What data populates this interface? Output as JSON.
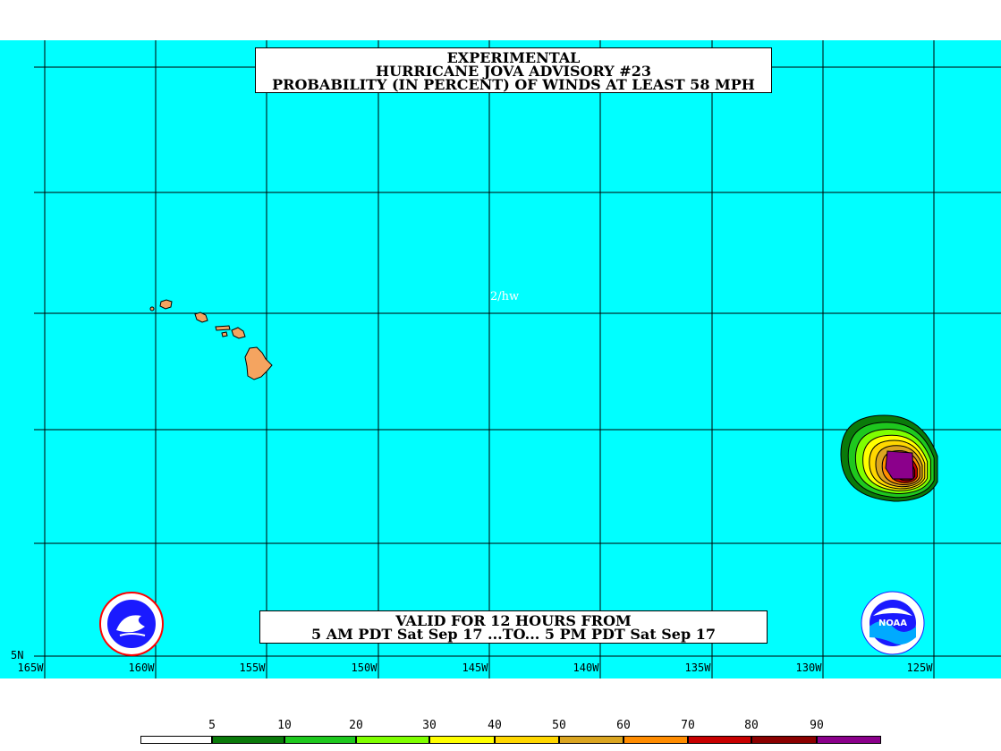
{
  "title": {
    "line1": "EXPERIMENTAL",
    "line2": "HURRICANE JOVA ADVISORY #23",
    "line3": "PROBABILITY (IN PERCENT) OF WINDS AT LEAST 58 MPH"
  },
  "valid": {
    "line1": "VALID FOR 12 HOURS FROM",
    "line2": "5 AM PDT Sat Sep 17 ...TO... 5 PM PDT Sat Sep 17"
  },
  "watermark": "2/hw",
  "map": {
    "background_color": "#00ffff",
    "land_color": "#f4a460",
    "longitude_labels": [
      "165W",
      "160W",
      "155W",
      "150W",
      "145W",
      "140W",
      "135W",
      "130W",
      "125W"
    ],
    "latitude_labels": [
      "5N"
    ]
  },
  "legend": {
    "labels": [
      "5",
      "10",
      "20",
      "30",
      "40",
      "50",
      "60",
      "70",
      "80",
      "90"
    ],
    "colors": [
      "#ffffff",
      "#0a7a0a",
      "#1ec81e",
      "#7fff00",
      "#ffff00",
      "#ffd700",
      "#daa520",
      "#ff8c00",
      "#c80000",
      "#8b0000",
      "#8b008b"
    ]
  },
  "logos": {
    "left": "nws-logo",
    "right": "noaa-logo",
    "right_text": "NOAA"
  }
}
